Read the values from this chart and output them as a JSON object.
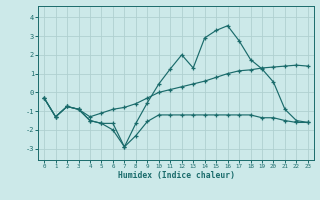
{
  "xlabel": "Humidex (Indice chaleur)",
  "bg_color": "#cce9e9",
  "grid_color": "#b0d0d0",
  "line_color": "#1a6b6b",
  "xlim": [
    -0.5,
    23.5
  ],
  "ylim": [
    -3.6,
    4.6
  ],
  "yticks": [
    -3,
    -2,
    -1,
    0,
    1,
    2,
    3,
    4
  ],
  "xticks": [
    0,
    1,
    2,
    3,
    4,
    5,
    6,
    7,
    8,
    9,
    10,
    11,
    12,
    13,
    14,
    15,
    16,
    17,
    18,
    19,
    20,
    21,
    22,
    23
  ],
  "line1_x": [
    0,
    1,
    2,
    3,
    4,
    5,
    6,
    7,
    8,
    9,
    10,
    11,
    12,
    13,
    14,
    15,
    16,
    17,
    18,
    19,
    20,
    21,
    22,
    23
  ],
  "line1_y": [
    -0.3,
    -1.3,
    -0.75,
    -0.9,
    -1.5,
    -1.65,
    -2.0,
    -2.9,
    -2.3,
    -1.55,
    -1.2,
    -1.2,
    -1.2,
    -1.2,
    -1.2,
    -1.2,
    -1.2,
    -1.2,
    -1.2,
    -1.35,
    -1.35,
    -1.5,
    -1.6,
    -1.6
  ],
  "line2_x": [
    0,
    1,
    2,
    3,
    4,
    5,
    6,
    7,
    8,
    9,
    10,
    11,
    12,
    13,
    14,
    15,
    16,
    17,
    18,
    19,
    20,
    21,
    22,
    23
  ],
  "line2_y": [
    -0.3,
    -1.3,
    -0.75,
    -0.9,
    -1.5,
    -1.65,
    -1.65,
    -2.9,
    -1.65,
    -0.55,
    0.45,
    1.25,
    2.0,
    1.3,
    2.9,
    3.3,
    3.55,
    2.75,
    1.75,
    1.25,
    0.55,
    -0.9,
    -1.5,
    -1.6
  ],
  "line3_x": [
    0,
    1,
    2,
    3,
    4,
    5,
    6,
    7,
    8,
    9,
    10,
    11,
    12,
    13,
    14,
    15,
    16,
    17,
    18,
    19,
    20,
    21,
    22,
    23
  ],
  "line3_y": [
    -0.3,
    -1.3,
    -0.75,
    -0.9,
    -1.3,
    -1.1,
    -0.9,
    -0.8,
    -0.6,
    -0.3,
    0.0,
    0.15,
    0.3,
    0.45,
    0.6,
    0.8,
    1.0,
    1.15,
    1.2,
    1.3,
    1.35,
    1.4,
    1.45,
    1.4
  ]
}
